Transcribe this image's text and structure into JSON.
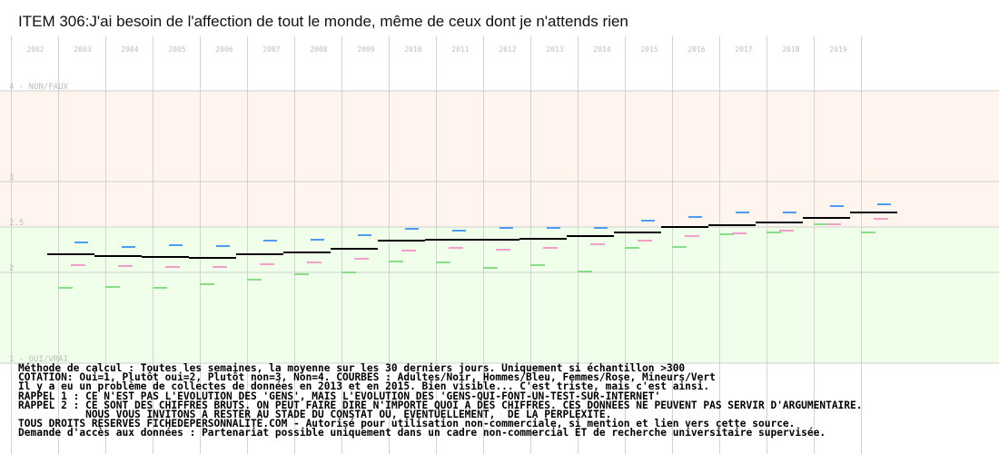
{
  "chart_data": {
    "type": "line",
    "title": "ITEM 306:J'ai besoin de l'affection de tout le monde, même de ceux dont je n'attends rien",
    "categories": [
      "2002",
      "2003",
      "2004",
      "2005",
      "2006",
      "2007",
      "2008",
      "2009",
      "2010",
      "2011",
      "2012",
      "2013",
      "2014",
      "2015",
      "2016",
      "2017",
      "2018",
      "2019"
    ],
    "ylim": [
      1,
      4
    ],
    "yticks": [
      {
        "value": 4,
        "label": "4 - NON/FAUX"
      },
      {
        "value": 3,
        "label": "3"
      },
      {
        "value": 2.5,
        "label": "2.5"
      },
      {
        "value": 2,
        "label": "2"
      },
      {
        "value": 1,
        "label": "1 - OUI/VRAI"
      }
    ],
    "grid": true,
    "bands": [
      {
        "from": 2.5,
        "to": 4,
        "color": "#fff4ee"
      },
      {
        "from": 1,
        "to": 2.5,
        "color": "#efffe9"
      }
    ],
    "series": [
      {
        "name": "Adultes",
        "color": "#000000",
        "values": [
          2.2,
          2.18,
          2.17,
          2.16,
          2.2,
          2.22,
          2.26,
          2.35,
          2.36,
          2.36,
          2.37,
          2.4,
          2.44,
          2.5,
          2.52,
          2.55,
          2.6,
          2.66
        ]
      },
      {
        "name": "Hommes",
        "color": "#4f9bf0",
        "values": [
          2.33,
          2.28,
          2.3,
          2.29,
          2.35,
          2.36,
          2.41,
          2.48,
          2.46,
          2.49,
          2.49,
          2.49,
          2.57,
          2.61,
          2.66,
          2.66,
          2.73,
          2.75
        ]
      },
      {
        "name": "Femmes",
        "color": "#f0a0c8",
        "values": [
          2.08,
          2.07,
          2.06,
          2.06,
          2.09,
          2.11,
          2.15,
          2.24,
          2.27,
          2.25,
          2.27,
          2.31,
          2.35,
          2.4,
          2.43,
          2.46,
          2.53,
          2.59
        ]
      },
      {
        "name": "Mineurs",
        "color": "#88dd88",
        "values": [
          1.83,
          1.84,
          1.83,
          1.87,
          1.92,
          1.98,
          2.0,
          2.12,
          2.11,
          2.05,
          2.08,
          2.01,
          2.27,
          2.28,
          2.42,
          2.44,
          2.53,
          2.44
        ]
      }
    ]
  },
  "notes": [
    "Méthode de calcul : Toutes les semaines, la moyenne sur les 30 derniers jours. Uniquement si échantillon >300",
    "COTATION: Oui=1, Plutôt oui=2, Plutôt non=3, Non=4. COURBES : Adultes/Noir, Hommes/Bleu, Femmes/Rose, Mineurs/Vert",
    "Il y a eu un problème de collectes de données en 2013 et en 2015. Bien visible... C'est triste, mais c'est ainsi.",
    "RAPPEL 1 : CE N'EST PAS L'EVOLUTION DES 'GENS', MAIS L'EVOLUTION DES 'GENS-QUI-FONT-UN-TEST-SUR-INTERNET'",
    "RAPPEL 2 : CE SONT DES CHIFFRES BRUTS. ON PEUT FAIRE DIRE N'IMPORTE QUOI A DES CHIFFRES. CES DONNEES NE PEUVENT PAS SERVIR D'ARGUMENTAIRE.",
    "           NOUS VOUS INVITONS A RESTER AU STADE DU CONSTAT OU, EVENTUELLEMENT,  DE LA PERPLEXITE.",
    "TOUS DROITS RESERVES FICHEDEPERSONNALITE.COM - Autorisé pour utilisation non-commerciale, si mention et lien vers cette source.",
    "Demande d'accès aux données : Partenariat possible uniquement dans un cadre non-commercial ET de recherche universitaire supervisée."
  ]
}
